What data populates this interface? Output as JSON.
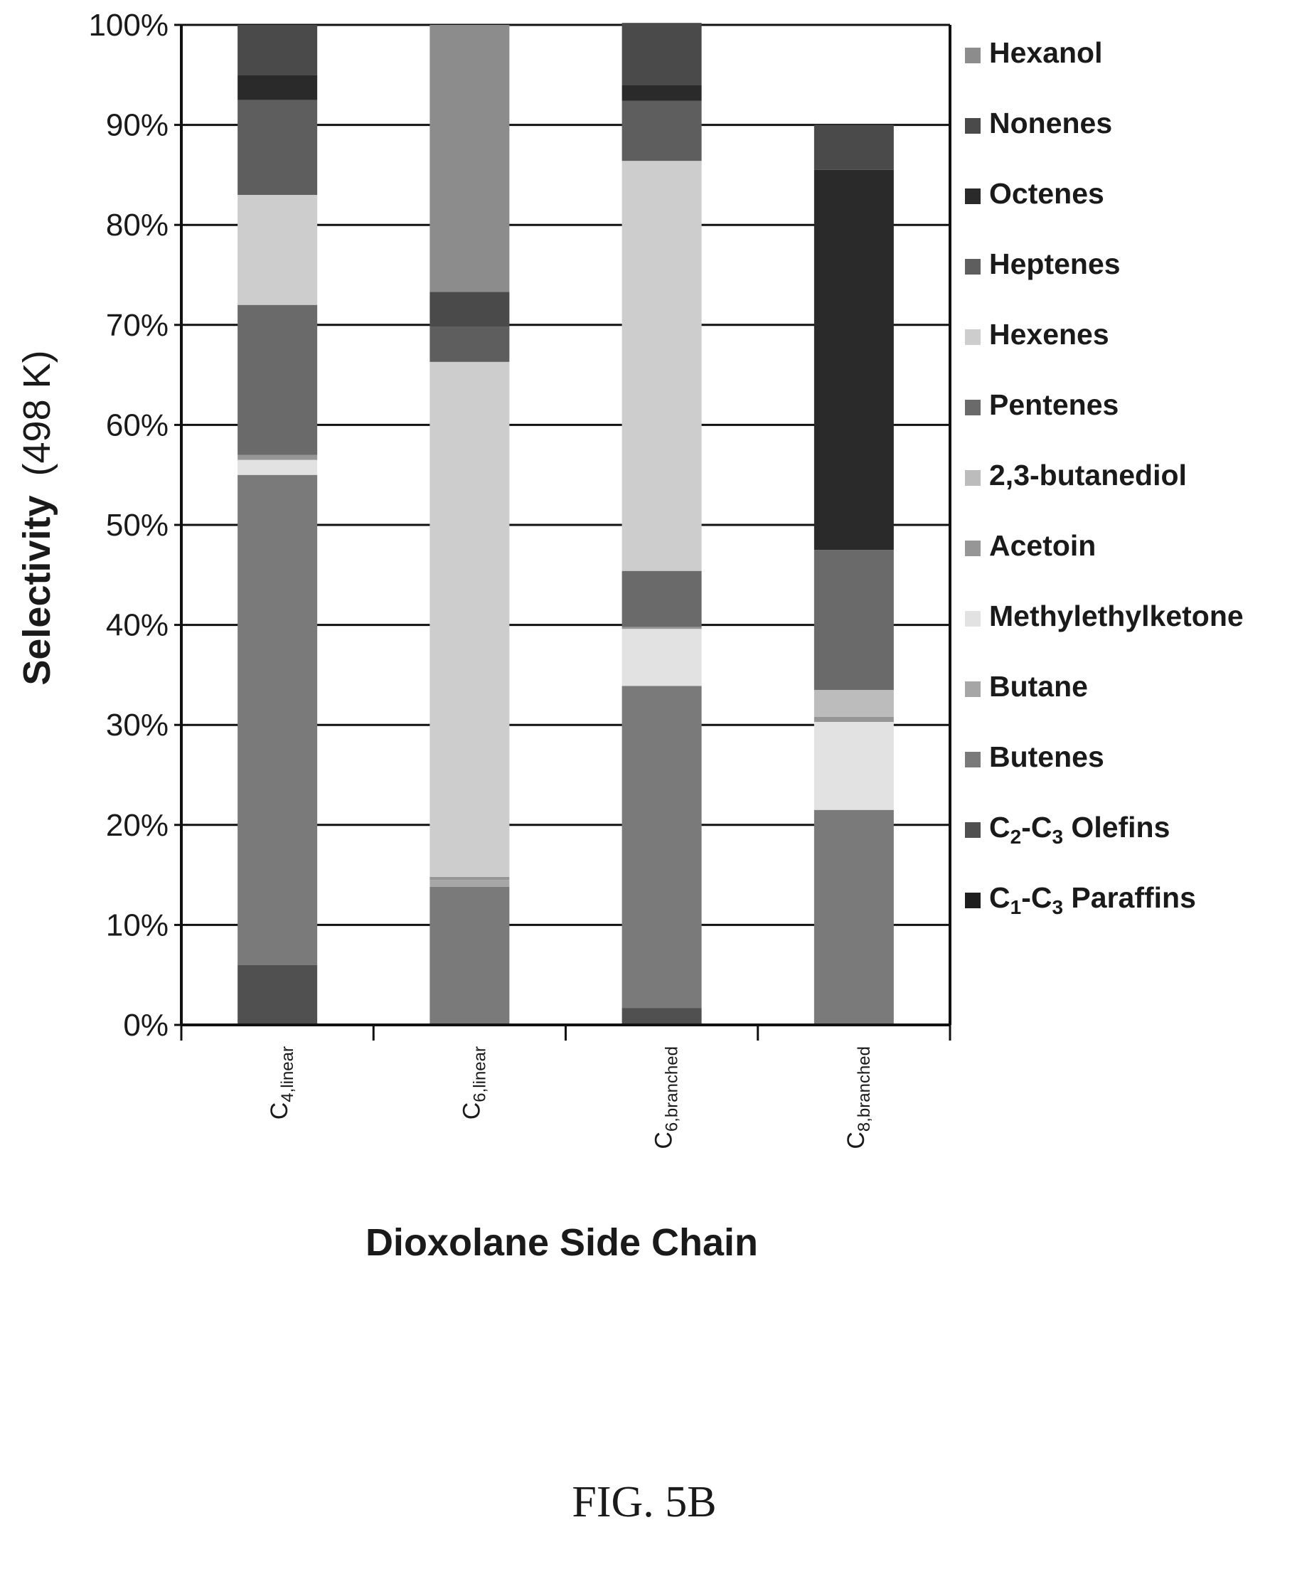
{
  "chart_data": {
    "type": "bar",
    "stacked": true,
    "xlabel": "Dioxolane Side Chain",
    "ylabel_bold": "Selectivity",
    "ylabel_unit": "(498 K)",
    "ylim": [
      0,
      100
    ],
    "y_ticks": [
      "0%",
      "10%",
      "20%",
      "30%",
      "40%",
      "50%",
      "60%",
      "70%",
      "80%",
      "90%",
      "100%"
    ],
    "grid": true,
    "legend_placement": "right",
    "categories": [
      {
        "main": "C",
        "sub": "4,linear"
      },
      {
        "main": "C",
        "sub": "6,linear"
      },
      {
        "main": "C",
        "sub": "6,branched"
      },
      {
        "main": "C",
        "sub": "8,branched"
      }
    ],
    "series": [
      {
        "name": "C1-C3 Paraffins",
        "color": "#1e1e1e",
        "values": [
          0,
          0,
          0,
          0
        ]
      },
      {
        "name": "C2-C3 Olefins",
        "color": "#505050",
        "values": [
          6,
          0,
          1.7,
          0
        ]
      },
      {
        "name": "Butenes",
        "color": "#7a7a7a",
        "values": [
          49,
          13.8,
          32.2,
          21.5
        ]
      },
      {
        "name": "Butane",
        "color": "#a6a6a6",
        "values": [
          0,
          0.7,
          0,
          0
        ]
      },
      {
        "name": "Methylethylketone",
        "color": "#e2e2e2",
        "values": [
          1.5,
          0,
          5.7,
          8.8
        ]
      },
      {
        "name": "Acetoin",
        "color": "#969696",
        "values": [
          0.5,
          0.3,
          0.2,
          0.5
        ]
      },
      {
        "name": "2,3-butanediol",
        "color": "#bcbcbc",
        "values": [
          0,
          0,
          0,
          2.7
        ]
      },
      {
        "name": "Pentenes",
        "color": "#6a6a6a",
        "values": [
          15,
          0,
          5.6,
          14
        ]
      },
      {
        "name": "Hexenes",
        "color": "#cdcdcd",
        "values": [
          11,
          51.5,
          41,
          0
        ]
      },
      {
        "name": "Heptenes",
        "color": "#5e5e5e",
        "values": [
          9.5,
          3.5,
          6,
          0
        ]
      },
      {
        "name": "Octenes",
        "color": "#2a2a2a",
        "values": [
          2.5,
          0,
          1.6,
          38
        ]
      },
      {
        "name": "Nonenes",
        "color": "#4a4a4a",
        "values": [
          5,
          3.5,
          6.2,
          4.5
        ]
      },
      {
        "name": "Hexanol",
        "color": "#8c8c8c",
        "values": [
          0,
          26.7,
          0,
          0
        ]
      }
    ],
    "legend": [
      {
        "label": "Hexanol",
        "color": "#8c8c8c"
      },
      {
        "label": "Nonenes",
        "color": "#4a4a4a"
      },
      {
        "label": "Octenes",
        "color": "#2a2a2a"
      },
      {
        "label": "Heptenes",
        "color": "#5e5e5e"
      },
      {
        "label": "Hexenes",
        "color": "#cdcdcd"
      },
      {
        "label": "Pentenes",
        "color": "#6a6a6a"
      },
      {
        "label": "2,3-butanediol",
        "color": "#bcbcbc"
      },
      {
        "label": "Acetoin",
        "color": "#969696"
      },
      {
        "label": "Methylethylketone",
        "color": "#e2e2e2"
      },
      {
        "label": "Butane",
        "color": "#a6a6a6"
      },
      {
        "label": "Butenes",
        "color": "#7a7a7a"
      },
      {
        "label": "C2-C3 Olefins",
        "color": "#505050",
        "parts": [
          [
            "C",
            ""
          ],
          [
            "2",
            "sub"
          ],
          [
            "-C",
            ""
          ],
          [
            "3",
            "sub"
          ],
          [
            " Olefins",
            ""
          ]
        ]
      },
      {
        "label": "C1-C3 Paraffins",
        "color": "#1e1e1e",
        "parts": [
          [
            "C",
            ""
          ],
          [
            "1",
            "sub"
          ],
          [
            "-C",
            ""
          ],
          [
            "3",
            "sub"
          ],
          [
            " Paraffins",
            ""
          ]
        ]
      }
    ]
  },
  "figure_label": "FIG. 5B"
}
